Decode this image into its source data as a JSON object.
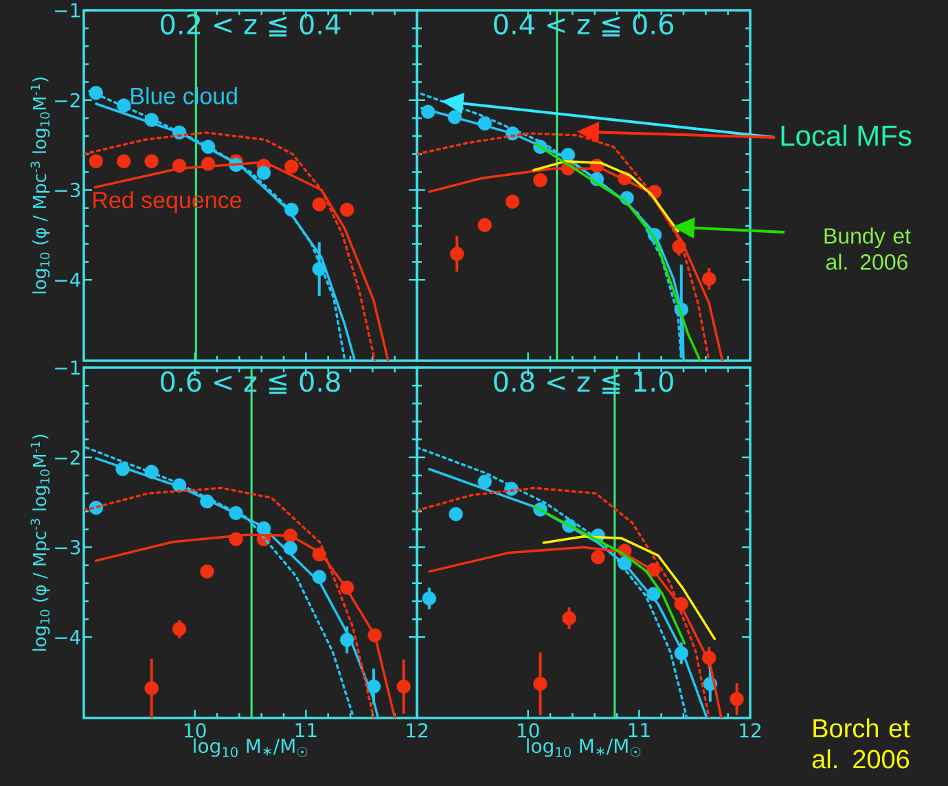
{
  "chart_data": [
    {
      "type": "line",
      "title": "0.2 < z ≦ 0.4",
      "ylabel": "log$_{10}$ (φ / Mpc$^{-3}$ log$_{10}$M$^{-1}$)",
      "xlim": [
        9,
        12
      ],
      "ylim": [
        -4.9,
        -1
      ],
      "xticks": [
        10,
        11,
        12
      ],
      "yticks": [
        {
          "value": -1,
          "label": "−1"
        },
        {
          "value": -2,
          "label": "−2"
        },
        {
          "value": -3,
          "label": "−3"
        },
        {
          "value": -4,
          "label": "−4"
        }
      ],
      "tick_labels": "y",
      "grid": false,
      "ref_lines": [
        {
          "axis": "x",
          "value": 10.01,
          "color": "#33ee77"
        }
      ],
      "series": [
        {
          "type": "scatter",
          "name": "Blue cloud",
          "color": "#22c4f0",
          "marker": "circle",
          "x": [
            9.11,
            9.36,
            9.61,
            9.86,
            10.12,
            10.37,
            10.62,
            10.87,
            11.12
          ],
          "values": [
            -1.92,
            -2.06,
            -2.22,
            -2.36,
            -2.52,
            -2.72,
            -2.81,
            -3.22,
            -3.88
          ],
          "errors": [
            null,
            null,
            null,
            null,
            null,
            null,
            null,
            null,
            0.3
          ]
        },
        {
          "type": "scatter",
          "name": "Red sequence",
          "color": "#f03010",
          "marker": "circle",
          "x": [
            9.11,
            9.36,
            9.61,
            9.86,
            10.12,
            10.37,
            10.62,
            10.87,
            11.12,
            11.37
          ],
          "values": [
            -2.68,
            -2.68,
            -2.68,
            -2.73,
            -2.71,
            -2.68,
            -2.73,
            -2.74,
            -3.16,
            -3.22
          ]
        },
        {
          "color": "#22c4f0",
          "marker": "none",
          "line_style": "solid",
          "x": [
            9.11,
            9.86,
            10.41,
            10.84,
            11.14,
            11.35,
            11.44
          ],
          "values": [
            -2.04,
            -2.36,
            -2.73,
            -3.22,
            -3.75,
            -4.5,
            -4.9
          ]
        },
        {
          "color": "#22c4f0",
          "marker": "none",
          "line_style": "dotted",
          "x": [
            9.05,
            9.6,
            10.1,
            10.5,
            10.8,
            11.05,
            11.25,
            11.35
          ],
          "values": [
            -1.9,
            -2.2,
            -2.5,
            -2.8,
            -3.15,
            -3.6,
            -4.2,
            -4.9
          ]
        },
        {
          "color": "#f03010",
          "marker": "none",
          "line_style": "solid",
          "x": [
            9.1,
            9.86,
            10.2,
            10.63,
            11.14,
            11.35,
            11.61,
            11.74
          ],
          "values": [
            -2.97,
            -2.76,
            -2.73,
            -2.69,
            -3.0,
            -3.43,
            -4.23,
            -4.9
          ]
        },
        {
          "color": "#f03010",
          "marker": "none",
          "line_style": "dotted",
          "x": [
            9.0,
            9.55,
            10.09,
            10.63,
            10.88,
            11.14,
            11.33,
            11.48,
            11.62
          ],
          "values": [
            -2.6,
            -2.44,
            -2.36,
            -2.44,
            -2.6,
            -3.0,
            -3.5,
            -4.12,
            -4.9
          ]
        }
      ]
    },
    {
      "type": "line",
      "title": "0.4 < z ≦ 0.6",
      "xlim": [
        9,
        12
      ],
      "ylim": [
        -4.9,
        -1
      ],
      "xticks": [
        10,
        11,
        12
      ],
      "yticks": [
        -1,
        -2,
        -3,
        -4
      ],
      "tick_labels": false,
      "grid": false,
      "ref_lines": [
        {
          "axis": "x",
          "value": 10.26,
          "color": "#33ee77"
        }
      ],
      "annotations": [
        "Local MFs",
        "Bundy et al. 2006"
      ],
      "series": [
        {
          "type": "scatter",
          "color": "#22c4f0",
          "marker": "circle",
          "x": [
            9.1,
            9.34,
            9.61,
            9.86,
            10.11,
            10.36,
            10.62,
            10.89,
            11.14,
            11.38
          ],
          "values": [
            -2.13,
            -2.19,
            -2.26,
            -2.37,
            -2.52,
            -2.61,
            -2.88,
            -3.09,
            -3.5,
            -4.33
          ],
          "errors": [
            null,
            null,
            null,
            null,
            null,
            null,
            null,
            null,
            null,
            0.5
          ]
        },
        {
          "type": "scatter",
          "color": "#f03010",
          "marker": "circle",
          "x": [
            9.36,
            9.61,
            9.86,
            10.11,
            10.36,
            10.62,
            10.87,
            11.14,
            11.36,
            11.63
          ],
          "values": [
            -3.71,
            -3.39,
            -3.13,
            -2.89,
            -2.76,
            -2.73,
            -2.87,
            -3.02,
            -3.63,
            -3.99
          ],
          "errors": [
            0.2,
            null,
            null,
            null,
            null,
            null,
            null,
            null,
            0.1,
            0.12
          ]
        },
        {
          "color": "#22c4f0",
          "marker": "none",
          "line_style": "solid",
          "x": [
            9.04,
            9.86,
            10.36,
            10.88,
            11.14,
            11.31,
            11.39,
            11.4
          ],
          "values": [
            -2.09,
            -2.37,
            -2.65,
            -3.13,
            -3.48,
            -3.99,
            -4.39,
            -4.9
          ]
        },
        {
          "color": "#22c4f0",
          "marker": "none",
          "line_style": "dotted",
          "x": [
            9.04,
            9.58,
            10.13,
            10.66,
            10.99,
            11.2,
            11.35,
            11.38
          ],
          "values": [
            -1.93,
            -2.17,
            -2.47,
            -2.92,
            -3.26,
            -3.75,
            -4.39,
            -4.9
          ]
        },
        {
          "color": "#f03010",
          "marker": "none",
          "line_style": "solid",
          "x": [
            9.11,
            9.58,
            10.23,
            10.66,
            11.09,
            11.38,
            11.63,
            11.75
          ],
          "values": [
            -3.02,
            -2.87,
            -2.76,
            -2.76,
            -3.02,
            -3.56,
            -4.26,
            -4.9
          ]
        },
        {
          "color": "#f03010",
          "marker": "none",
          "line_style": "dotted",
          "x": [
            9.0,
            9.48,
            10.01,
            10.44,
            10.77,
            11.09,
            11.38,
            11.53,
            11.63
          ],
          "values": [
            -2.6,
            -2.47,
            -2.37,
            -2.39,
            -2.52,
            -3.0,
            -3.59,
            -4.26,
            -4.9
          ]
        },
        {
          "color": "#ffee00",
          "marker": "none",
          "line_style": "solid",
          "x": [
            10.05,
            10.34,
            10.66,
            10.92,
            11.11,
            11.35
          ],
          "values": [
            -2.78,
            -2.68,
            -2.7,
            -2.84,
            -3.05,
            -3.46
          ]
        },
        {
          "color": "#22dd00",
          "marker": "none",
          "line_style": "solid",
          "x": [
            10.07,
            10.44,
            10.88,
            11.14,
            11.31,
            11.44,
            11.55
          ],
          "values": [
            -2.49,
            -2.78,
            -3.13,
            -3.53,
            -4.12,
            -4.6,
            -4.9
          ]
        }
      ]
    },
    {
      "type": "line",
      "title": "0.6 < z ≦ 0.8",
      "xlabel": "log$_{10}$ M$_{∗}$/M$_{☉}$",
      "ylabel": "log$_{10}$ (φ / Mpc$^{-3}$ log$_{10}$M$^{-1}$)",
      "xlim": [
        9,
        12
      ],
      "ylim": [
        -4.9,
        -1
      ],
      "xticks": [
        10,
        11,
        12
      ],
      "yticks": [
        {
          "value": -1,
          "label": "−1"
        },
        {
          "value": -2,
          "label": "−2"
        },
        {
          "value": -3,
          "label": "−3"
        },
        {
          "value": -4,
          "label": "−4"
        }
      ],
      "grid": false,
      "ref_lines": [
        {
          "axis": "x",
          "value": 10.51,
          "color": "#33ee77"
        }
      ],
      "series": [
        {
          "type": "scatter",
          "color": "#22c4f0",
          "marker": "circle",
          "x": [
            9.11,
            9.35,
            9.61,
            9.86,
            10.11,
            10.37,
            10.62,
            10.86,
            11.12,
            11.37,
            11.61
          ],
          "values": [
            -2.56,
            -2.13,
            -2.16,
            -2.31,
            -2.49,
            -2.62,
            -2.79,
            -3.01,
            -3.33,
            -4.03,
            -4.55
          ],
          "errors": [
            null,
            null,
            null,
            null,
            null,
            null,
            null,
            null,
            null,
            0.15,
            0.2
          ]
        },
        {
          "type": "scatter",
          "color": "#f03010",
          "marker": "circle",
          "x": [
            9.61,
            9.86,
            10.11,
            10.37,
            10.62,
            10.86,
            11.12,
            11.37,
            11.62,
            11.88
          ],
          "values": [
            -4.57,
            -3.91,
            -3.27,
            -2.91,
            -2.91,
            -2.87,
            -3.08,
            -3.45,
            -3.98,
            -4.55
          ],
          "errors": [
            0.33,
            0.1,
            null,
            null,
            null,
            null,
            null,
            null,
            null,
            0.3
          ]
        },
        {
          "color": "#22c4f0",
          "marker": "none",
          "line_style": "solid",
          "x": [
            9.11,
            9.87,
            10.6,
            11.13,
            11.4,
            11.6,
            11.65
          ],
          "values": [
            -2.01,
            -2.33,
            -2.76,
            -3.4,
            -4.02,
            -4.66,
            -4.9
          ]
        },
        {
          "color": "#22c4f0",
          "marker": "none",
          "line_style": "dotted",
          "x": [
            9.02,
            9.8,
            10.47,
            10.91,
            11.24,
            11.43
          ],
          "values": [
            -1.89,
            -2.26,
            -2.67,
            -3.32,
            -4.16,
            -4.9
          ]
        },
        {
          "color": "#f03010",
          "marker": "none",
          "line_style": "solid",
          "x": [
            9.11,
            9.8,
            10.47,
            10.86,
            11.13,
            11.35,
            11.62,
            11.8
          ],
          "values": [
            -3.15,
            -2.94,
            -2.86,
            -2.87,
            -3.06,
            -3.43,
            -3.98,
            -4.9
          ]
        },
        {
          "color": "#f03010",
          "marker": "none",
          "line_style": "dotted",
          "x": [
            9.0,
            9.58,
            10.24,
            10.69,
            11.13,
            11.42,
            11.61
          ],
          "values": [
            -2.59,
            -2.4,
            -2.34,
            -2.45,
            -2.95,
            -3.88,
            -4.9
          ]
        }
      ]
    },
    {
      "type": "line",
      "title": "0.8 < z ≦ 1.0",
      "xlabel": "log$_{10}$ M$_{∗}$/M$_{☉}$",
      "xlim": [
        9,
        12
      ],
      "ylim": [
        -4.9,
        -1
      ],
      "xticks": [
        10,
        11,
        12
      ],
      "yticks": [
        -1,
        -2,
        -3,
        -4
      ],
      "tick_labels": "x",
      "grid": false,
      "ref_lines": [
        {
          "axis": "x",
          "value": 10.78,
          "color": "#33ee77"
        }
      ],
      "annotations": [
        "Borch et al. 2006"
      ],
      "series": [
        {
          "type": "scatter",
          "color": "#22c4f0",
          "marker": "circle",
          "x": [
            9.11,
            9.35,
            9.61,
            9.85,
            10.11,
            10.37,
            10.63,
            10.87,
            11.13,
            11.38,
            11.64
          ],
          "values": [
            -3.57,
            -2.63,
            -2.27,
            -2.35,
            -2.58,
            -2.76,
            -2.87,
            -3.18,
            -3.52,
            -4.18,
            -4.52
          ],
          "errors": [
            0.12,
            null,
            null,
            null,
            null,
            null,
            null,
            null,
            null,
            0.12,
            0.2
          ]
        },
        {
          "type": "scatter",
          "color": "#f03010",
          "marker": "circle",
          "x": [
            10.11,
            10.37,
            10.63,
            10.87,
            11.13,
            11.38,
            11.63,
            11.88
          ],
          "values": [
            -4.52,
            -3.79,
            -3.11,
            -3.04,
            -3.25,
            -3.63,
            -4.23,
            -4.69
          ],
          "errors": [
            0.35,
            0.12,
            null,
            null,
            null,
            null,
            0.12,
            0.18
          ]
        },
        {
          "color": "#22c4f0",
          "marker": "none",
          "line_style": "solid",
          "x": [
            9.11,
            10.06,
            10.63,
            10.88,
            11.17,
            11.39,
            11.61
          ],
          "values": [
            -2.13,
            -2.55,
            -2.95,
            -3.2,
            -3.63,
            -4.16,
            -4.9
          ]
        },
        {
          "color": "#22c4f0",
          "marker": "none",
          "line_style": "dotted",
          "x": [
            9.0,
            9.61,
            10.16,
            10.68,
            11.06,
            11.28,
            11.43
          ],
          "values": [
            -1.89,
            -2.17,
            -2.51,
            -2.95,
            -3.54,
            -4.16,
            -4.9
          ]
        },
        {
          "color": "#f03010",
          "marker": "none",
          "line_style": "solid",
          "x": [
            9.11,
            9.83,
            10.5,
            10.84,
            11.13,
            11.39,
            11.64,
            11.74
          ],
          "values": [
            -3.27,
            -3.06,
            -3.0,
            -3.05,
            -3.26,
            -3.68,
            -4.3,
            -4.9
          ]
        },
        {
          "color": "#f03010",
          "marker": "none",
          "line_style": "dotted",
          "x": [
            9.0,
            9.49,
            10.06,
            10.61,
            10.94,
            11.28,
            11.51,
            11.63
          ],
          "values": [
            -2.59,
            -2.42,
            -2.34,
            -2.4,
            -2.73,
            -3.4,
            -4.16,
            -4.9
          ]
        },
        {
          "color": "#ffee00",
          "marker": "none",
          "line_style": "solid",
          "x": [
            10.14,
            10.5,
            10.84,
            11.17,
            11.39,
            11.68
          ],
          "values": [
            -2.95,
            -2.88,
            -2.9,
            -3.09,
            -3.45,
            -4.02
          ]
        },
        {
          "color": "#22dd00",
          "marker": "none",
          "line_style": "solid",
          "x": [
            10.06,
            10.5,
            10.84,
            11.06,
            11.21,
            11.41
          ],
          "values": [
            -2.55,
            -2.84,
            -3.06,
            -3.26,
            -3.52,
            -4.07
          ]
        }
      ]
    }
  ]
}
